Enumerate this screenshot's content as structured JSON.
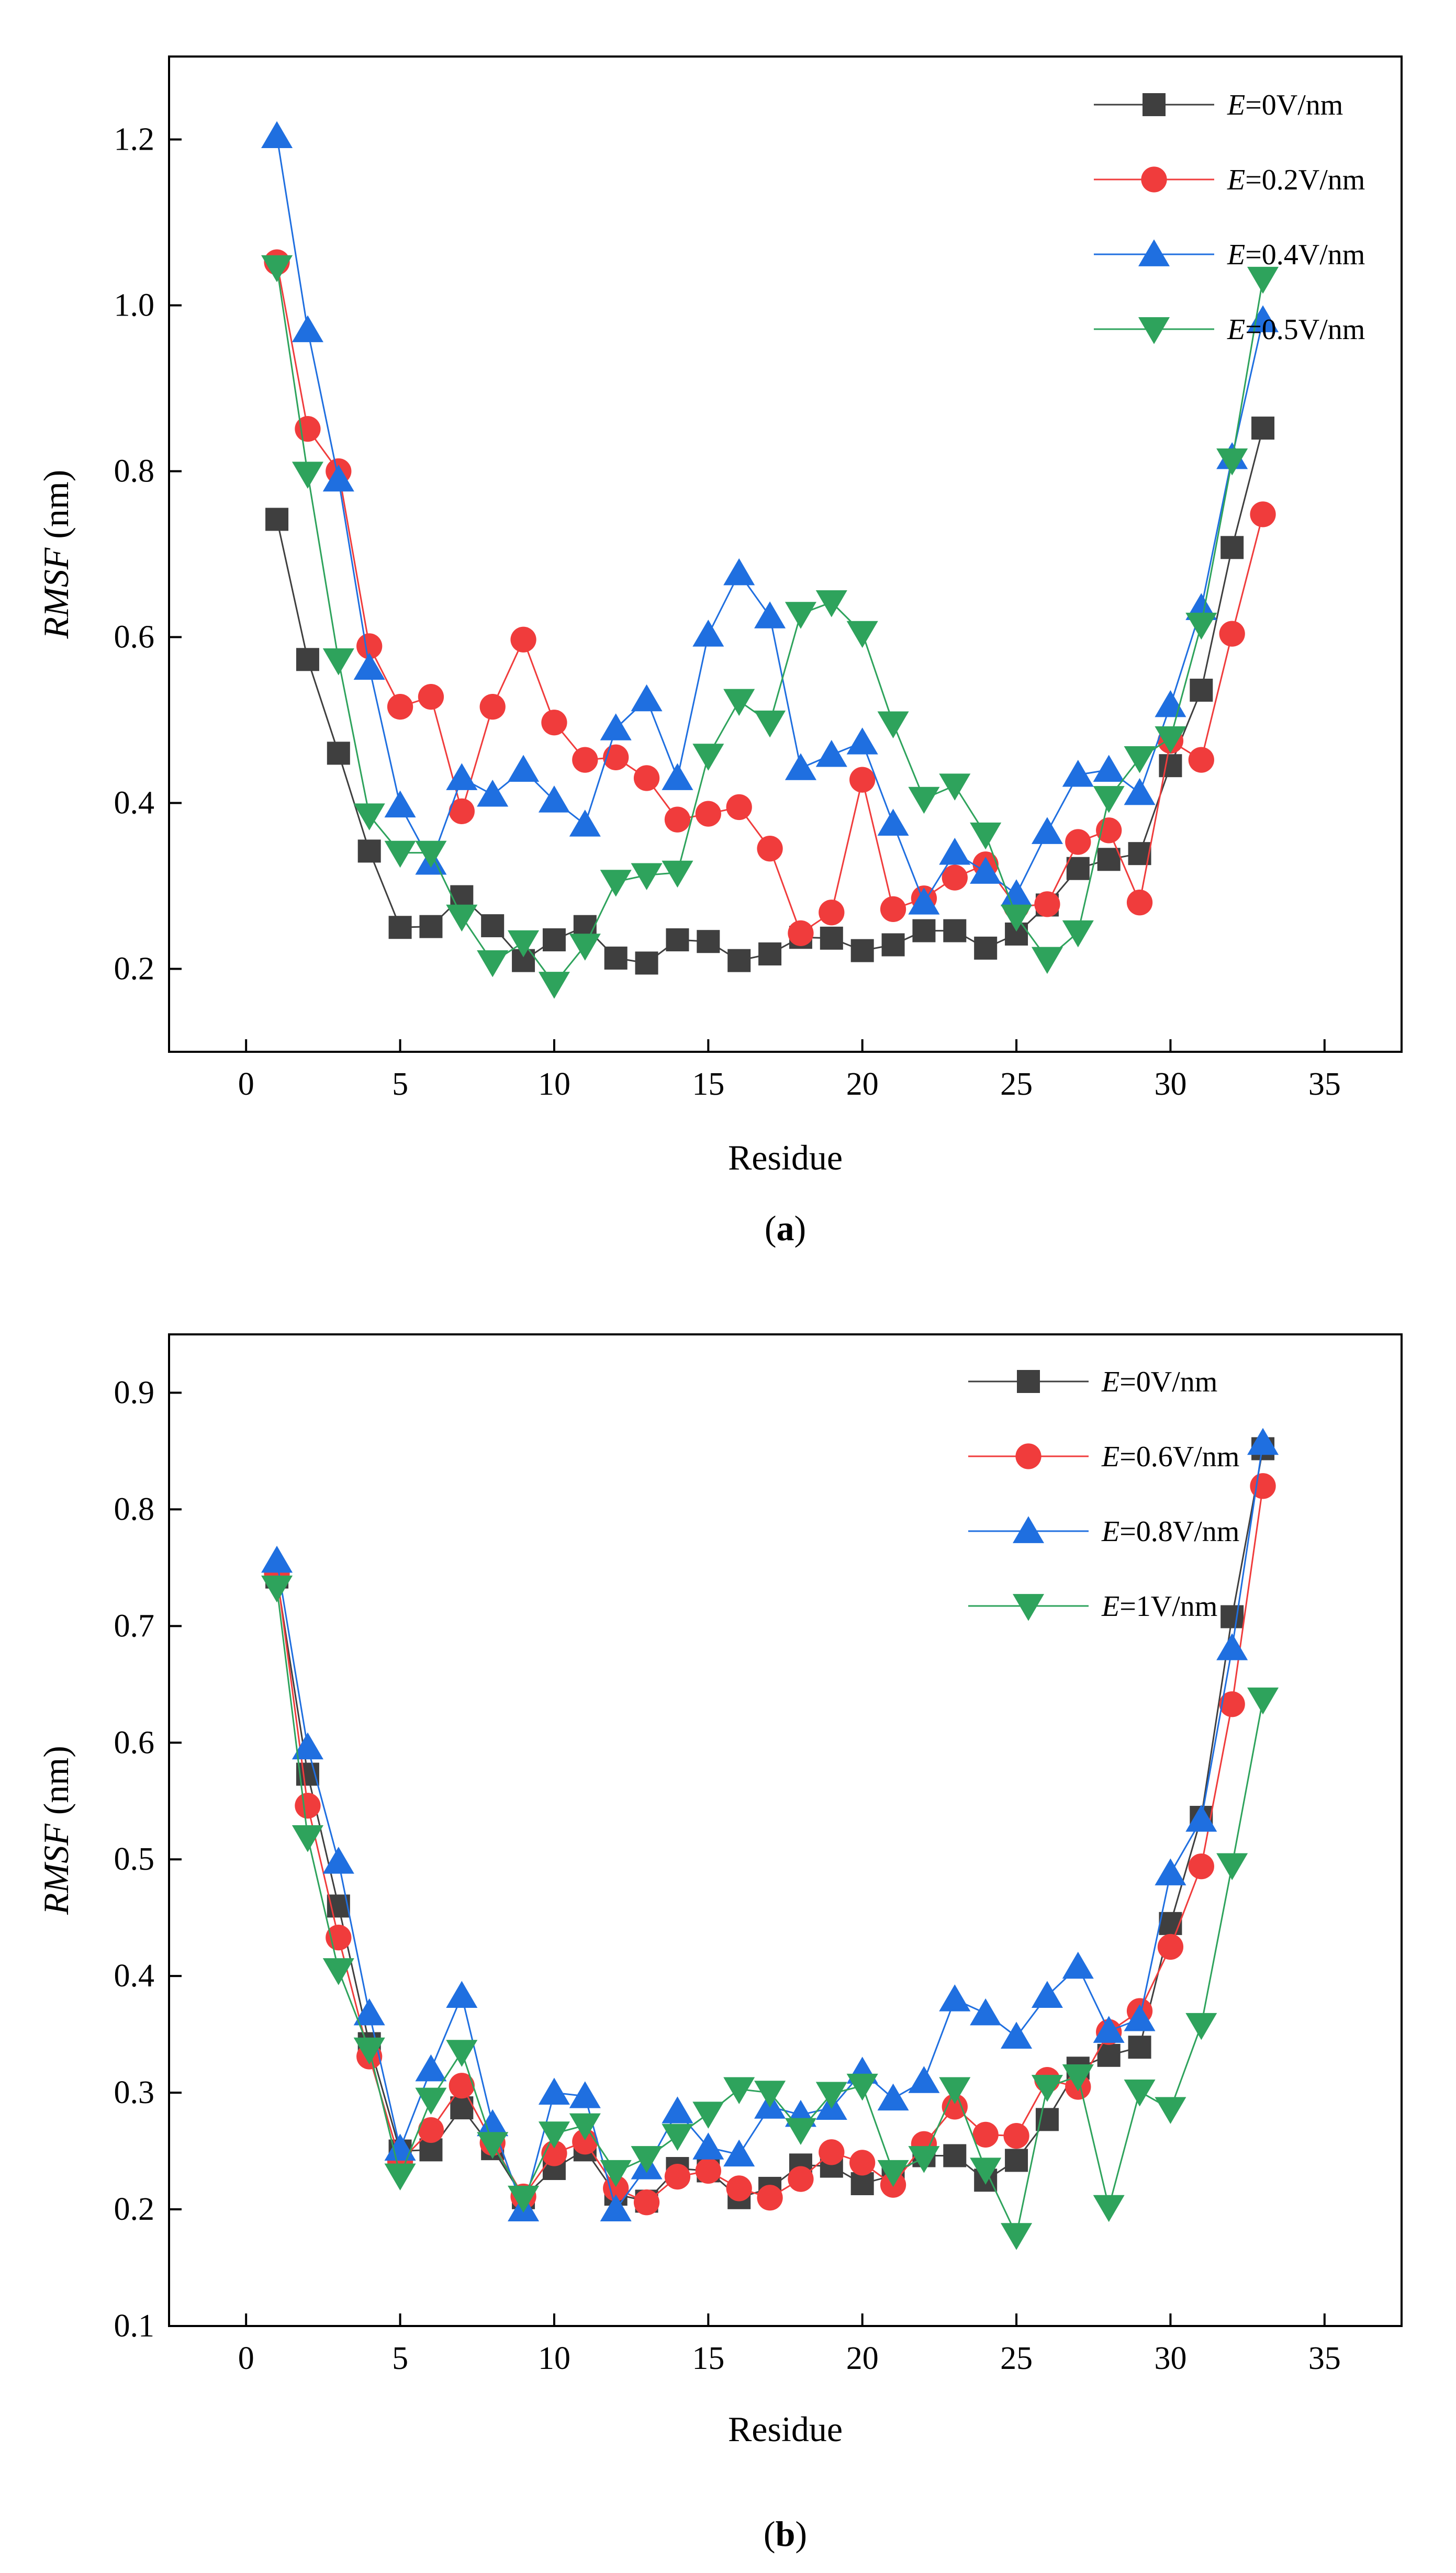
{
  "chart_data": [
    {
      "type": "line",
      "panel": "a",
      "caption": "(a)",
      "caption_letter": "a",
      "xlabel": "Residue",
      "ylabel_italic": "RMSF",
      "ylabel_unit": " (nm)",
      "xlim": [
        -2.5,
        37.5
      ],
      "ylim": [
        0.1,
        1.3
      ],
      "xticks": [
        0,
        5,
        10,
        15,
        20,
        25,
        30,
        35
      ],
      "yticks": [
        0.2,
        0.4,
        0.6,
        0.8,
        1.0,
        1.2
      ],
      "ytick_labels": [
        "0.2",
        "0.4",
        "0.6",
        "0.8",
        "1.0",
        "1.2"
      ],
      "legend_position": "top-right",
      "x": [
        1,
        2,
        3,
        4,
        5,
        6,
        7,
        8,
        9,
        10,
        11,
        12,
        13,
        14,
        15,
        16,
        17,
        18,
        19,
        20,
        21,
        22,
        23,
        24,
        25,
        26,
        27,
        28,
        29,
        30,
        31,
        32,
        33
      ],
      "series": [
        {
          "legend_italic": "E",
          "legend_rest": "=0V/nm",
          "color": "#3f3f3f",
          "marker": "square",
          "values": [
            0.742,
            0.573,
            0.46,
            0.342,
            0.25,
            0.251,
            0.287,
            0.252,
            0.21,
            0.235,
            0.251,
            0.213,
            0.207,
            0.235,
            0.233,
            0.21,
            0.218,
            0.238,
            0.237,
            0.222,
            0.229,
            0.246,
            0.246,
            0.225,
            0.242,
            0.277,
            0.321,
            0.332,
            0.339,
            0.445,
            0.536,
            0.708,
            0.852
          ]
        },
        {
          "legend_italic": "E",
          "legend_rest": "=0.2V/nm",
          "color": "#f03c3c",
          "marker": "circle",
          "values": [
            1.052,
            0.851,
            0.8,
            0.589,
            0.516,
            0.528,
            0.39,
            0.516,
            0.597,
            0.497,
            0.452,
            0.455,
            0.43,
            0.38,
            0.387,
            0.395,
            0.345,
            0.243,
            0.268,
            0.428,
            0.272,
            0.285,
            0.31,
            0.326,
            0.275,
            0.278,
            0.353,
            0.367,
            0.28,
            0.475,
            0.452,
            0.604,
            0.748
          ]
        },
        {
          "legend_italic": "E",
          "legend_rest": "=0.4V/nm",
          "color": "#1f6fe0",
          "marker": "triangle-up",
          "values": [
            1.204,
            0.97,
            0.79,
            0.563,
            0.397,
            0.328,
            0.43,
            0.41,
            0.44,
            0.403,
            0.374,
            0.49,
            0.525,
            0.43,
            0.603,
            0.677,
            0.625,
            0.442,
            0.458,
            0.473,
            0.375,
            0.28,
            0.34,
            0.317,
            0.29,
            0.365,
            0.434,
            0.44,
            0.412,
            0.518,
            0.635,
            0.817,
            0.982
          ]
        },
        {
          "legend_italic": "E",
          "legend_rest": "=0.5V/nm",
          "color": "#2ea35c",
          "marker": "triangle-down",
          "values": [
            1.046,
            0.797,
            0.572,
            0.385,
            0.34,
            0.34,
            0.263,
            0.208,
            0.232,
            0.182,
            0.228,
            0.305,
            0.313,
            0.316,
            0.457,
            0.523,
            0.497,
            0.628,
            0.642,
            0.605,
            0.496,
            0.405,
            0.421,
            0.362,
            0.263,
            0.212,
            0.244,
            0.406,
            0.454,
            0.478,
            0.615,
            0.813,
            1.032
          ]
        }
      ]
    },
    {
      "type": "line",
      "panel": "b",
      "caption": "(b)",
      "caption_letter": "b",
      "xlabel": "Residue",
      "ylabel_italic": "RMSF",
      "ylabel_unit": " (nm)",
      "xlim": [
        -2.5,
        37.5
      ],
      "ylim": [
        0.1,
        0.95
      ],
      "xticks": [
        0,
        5,
        10,
        15,
        20,
        25,
        30,
        35
      ],
      "yticks": [
        0.1,
        0.2,
        0.3,
        0.4,
        0.5,
        0.6,
        0.7,
        0.8,
        0.9
      ],
      "ytick_labels": [
        "0.1",
        "0.2",
        "0.3",
        "0.4",
        "0.5",
        "0.6",
        "0.7",
        "0.8",
        "0.9"
      ],
      "legend_position": "top-right",
      "x": [
        1,
        2,
        3,
        4,
        5,
        6,
        7,
        8,
        9,
        10,
        11,
        12,
        13,
        14,
        15,
        16,
        17,
        18,
        19,
        20,
        21,
        22,
        23,
        24,
        25,
        26,
        27,
        28,
        29,
        30,
        31,
        32,
        33
      ],
      "series": [
        {
          "legend_italic": "E",
          "legend_rest": "=0V/nm",
          "color": "#3f3f3f",
          "marker": "square",
          "values": [
            0.742,
            0.573,
            0.46,
            0.342,
            0.25,
            0.251,
            0.287,
            0.252,
            0.21,
            0.235,
            0.251,
            0.213,
            0.207,
            0.235,
            0.233,
            0.21,
            0.218,
            0.238,
            0.237,
            0.222,
            0.229,
            0.246,
            0.246,
            0.225,
            0.242,
            0.277,
            0.321,
            0.332,
            0.339,
            0.445,
            0.536,
            0.708,
            0.852
          ]
        },
        {
          "legend_italic": "E",
          "legend_rest": "=0.6V/nm",
          "color": "#f03c3c",
          "marker": "circle",
          "values": [
            0.745,
            0.546,
            0.433,
            0.331,
            0.241,
            0.268,
            0.306,
            0.257,
            0.211,
            0.248,
            0.258,
            0.218,
            0.206,
            0.228,
            0.233,
            0.218,
            0.21,
            0.226,
            0.249,
            0.24,
            0.221,
            0.256,
            0.288,
            0.264,
            0.263,
            0.311,
            0.305,
            0.352,
            0.37,
            0.425,
            0.494,
            0.633,
            0.82
          ]
        },
        {
          "legend_italic": "E",
          "legend_rest": "=0.8V/nm",
          "color": "#1f6fe0",
          "marker": "triangle-up",
          "values": [
            0.756,
            0.596,
            0.498,
            0.368,
            0.252,
            0.32,
            0.383,
            0.273,
            0.2,
            0.3,
            0.297,
            0.2,
            0.236,
            0.284,
            0.253,
            0.247,
            0.288,
            0.281,
            0.287,
            0.318,
            0.295,
            0.31,
            0.38,
            0.368,
            0.348,
            0.383,
            0.408,
            0.353,
            0.363,
            0.488,
            0.534,
            0.681,
            0.857
          ]
        },
        {
          "legend_italic": "E",
          "legend_rest": "=1V/nm",
          "color": "#2ea35c",
          "marker": "triangle-down",
          "values": [
            0.733,
            0.519,
            0.405,
            0.337,
            0.229,
            0.294,
            0.335,
            0.256,
            0.21,
            0.265,
            0.272,
            0.232,
            0.244,
            0.263,
            0.282,
            0.303,
            0.3,
            0.268,
            0.299,
            0.306,
            0.232,
            0.244,
            0.303,
            0.234,
            0.178,
            0.305,
            0.314,
            0.202,
            0.301,
            0.286,
            0.358,
            0.495,
            0.637
          ]
        }
      ]
    }
  ]
}
